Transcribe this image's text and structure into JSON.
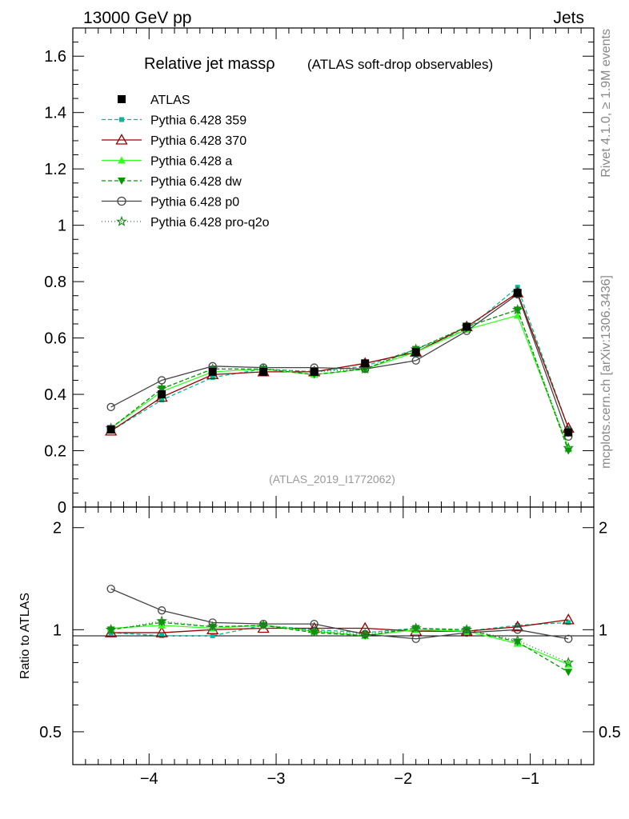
{
  "header": {
    "left": "13000 GeV pp",
    "right": "Jets",
    "side_top": "Rivet 4.1.0, ≥ 1.9M events",
    "side_bottom": "mcplots.cern.ch [arXiv:1306.3436]"
  },
  "colors": {
    "atlas": "#000000",
    "p359": "#00bb99",
    "p370": "#990000",
    "pa": "#33ff22",
    "pdw": "#009900",
    "pp0": "#444444",
    "ppro": "#228822"
  },
  "chart_data": [
    {
      "type": "line",
      "title": "Relative jet massρ",
      "subtitle": "(ATLAS soft-drop observables)",
      "watermark": "(ATLAS_2019_I1772062)",
      "xlabel": "",
      "ylabel": "",
      "xlim": [
        -4.6,
        -0.5
      ],
      "ylim": [
        0,
        1.7
      ],
      "y_ticks": [
        0,
        0.2,
        0.4,
        0.6,
        0.8,
        1,
        1.2,
        1.4,
        1.6
      ],
      "y_tick_labels": [
        "0",
        "0.2",
        "0.4",
        "0.6",
        "0.8",
        "1",
        "1.2",
        "1.4",
        "1.6"
      ],
      "legend_position": "top-left",
      "x": [
        -4.3,
        -3.9,
        -3.5,
        -3.1,
        -2.7,
        -2.3,
        -1.9,
        -1.5,
        -1.1,
        -0.7
      ],
      "series": [
        {
          "key": "p359",
          "name": "Pythia 6.428 359",
          "color": "#00bb99",
          "dash": "5,3",
          "marker": "square-small",
          "values": [
            0.27,
            0.38,
            0.46,
            0.49,
            0.48,
            0.5,
            0.56,
            0.63,
            0.78,
            0.28
          ]
        },
        {
          "key": "p370",
          "name": "Pythia 6.428 370",
          "color": "#990000",
          "dash": "",
          "marker": "triangle-open",
          "values": [
            0.27,
            0.39,
            0.47,
            0.48,
            0.48,
            0.51,
            0.55,
            0.64,
            0.76,
            0.28
          ]
        },
        {
          "key": "pa",
          "name": "Pythia 6.428 a",
          "color": "#33ff22",
          "dash": "",
          "marker": "triangle",
          "values": [
            0.28,
            0.41,
            0.48,
            0.49,
            0.47,
            0.49,
            0.55,
            0.63,
            0.68,
            0.21
          ]
        },
        {
          "key": "pdw",
          "name": "Pythia 6.428 dw",
          "color": "#009900",
          "dash": "5,3",
          "marker": "triangle-down",
          "values": [
            0.28,
            0.42,
            0.49,
            0.49,
            0.47,
            0.49,
            0.56,
            0.64,
            0.7,
            0.2
          ]
        },
        {
          "key": "pp0",
          "name": "Pythia 6.428 p0",
          "color": "#444444",
          "dash": "",
          "marker": "circle-open",
          "values": [
            0.355,
            0.45,
            0.5,
            0.495,
            0.495,
            0.49,
            0.52,
            0.625,
            0.755,
            0.25
          ]
        },
        {
          "key": "ppro",
          "name": "Pythia 6.428 pro-q2o",
          "color": "#228822",
          "dash": "1,3",
          "marker": "star",
          "values": [
            0.28,
            0.42,
            0.49,
            0.49,
            0.48,
            0.49,
            0.56,
            0.64,
            0.7,
            0.21
          ]
        },
        {
          "key": "atlas",
          "name": "ATLAS",
          "color": "#000000",
          "dash": "",
          "marker": "square",
          "no_line": true,
          "values": [
            0.275,
            0.4,
            0.48,
            0.48,
            0.48,
            0.51,
            0.55,
            0.64,
            0.76,
            0.265
          ]
        }
      ]
    },
    {
      "type": "line",
      "title": "",
      "ylabel": "Ratio to ATLAS",
      "xlim": [
        -4.6,
        -0.5
      ],
      "ylim": [
        0.4,
        2.3
      ],
      "y_scale": "log",
      "y_ticks": [
        0.5,
        1,
        2
      ],
      "y_tick_labels": [
        "0.5",
        "1",
        "2"
      ],
      "x_ticks": [
        -4,
        -3,
        -2,
        -1
      ],
      "x_tick_labels": [
        "−4",
        "−3",
        "−2",
        "−1"
      ],
      "x": [
        -4.3,
        -3.9,
        -3.5,
        -3.1,
        -2.7,
        -2.3,
        -1.9,
        -1.5,
        -1.1,
        -0.7
      ],
      "series": [
        {
          "key": "p359",
          "name": "Pythia 6.428 359",
          "color": "#00bb99",
          "dash": "5,3",
          "marker": "square-small",
          "values": [
            0.98,
            0.96,
            0.96,
            1.03,
            1.0,
            0.98,
            1.01,
            0.99,
            1.03,
            1.05
          ]
        },
        {
          "key": "p370",
          "name": "Pythia 6.428 370",
          "color": "#990000",
          "dash": "",
          "marker": "triangle-open",
          "values": [
            0.98,
            0.98,
            1.0,
            1.01,
            1.01,
            1.01,
            0.99,
            0.99,
            1.02,
            1.07
          ]
        },
        {
          "key": "pa",
          "name": "Pythia 6.428 a",
          "color": "#33ff22",
          "dash": "",
          "marker": "triangle",
          "values": [
            1.01,
            1.03,
            1.01,
            1.03,
            0.99,
            0.96,
            1.0,
            0.99,
            0.91,
            0.79
          ]
        },
        {
          "key": "pdw",
          "name": "Pythia 6.428 dw",
          "color": "#009900",
          "dash": "5,3",
          "marker": "triangle-down",
          "values": [
            1.0,
            1.05,
            1.02,
            1.03,
            0.98,
            0.96,
            1.01,
            1.0,
            0.92,
            0.75
          ]
        },
        {
          "key": "pp0",
          "name": "Pythia 6.428 p0",
          "color": "#444444",
          "dash": "",
          "marker": "circle-open",
          "values": [
            1.32,
            1.14,
            1.05,
            1.04,
            1.04,
            0.97,
            0.94,
            0.98,
            1.0,
            0.94
          ]
        },
        {
          "key": "ppro",
          "name": "Pythia 6.428 pro-q2o",
          "color": "#228822",
          "dash": "1,3",
          "marker": "star",
          "values": [
            1.0,
            1.06,
            1.02,
            1.03,
            0.99,
            0.97,
            1.01,
            1.0,
            0.93,
            0.8
          ]
        }
      ]
    }
  ]
}
